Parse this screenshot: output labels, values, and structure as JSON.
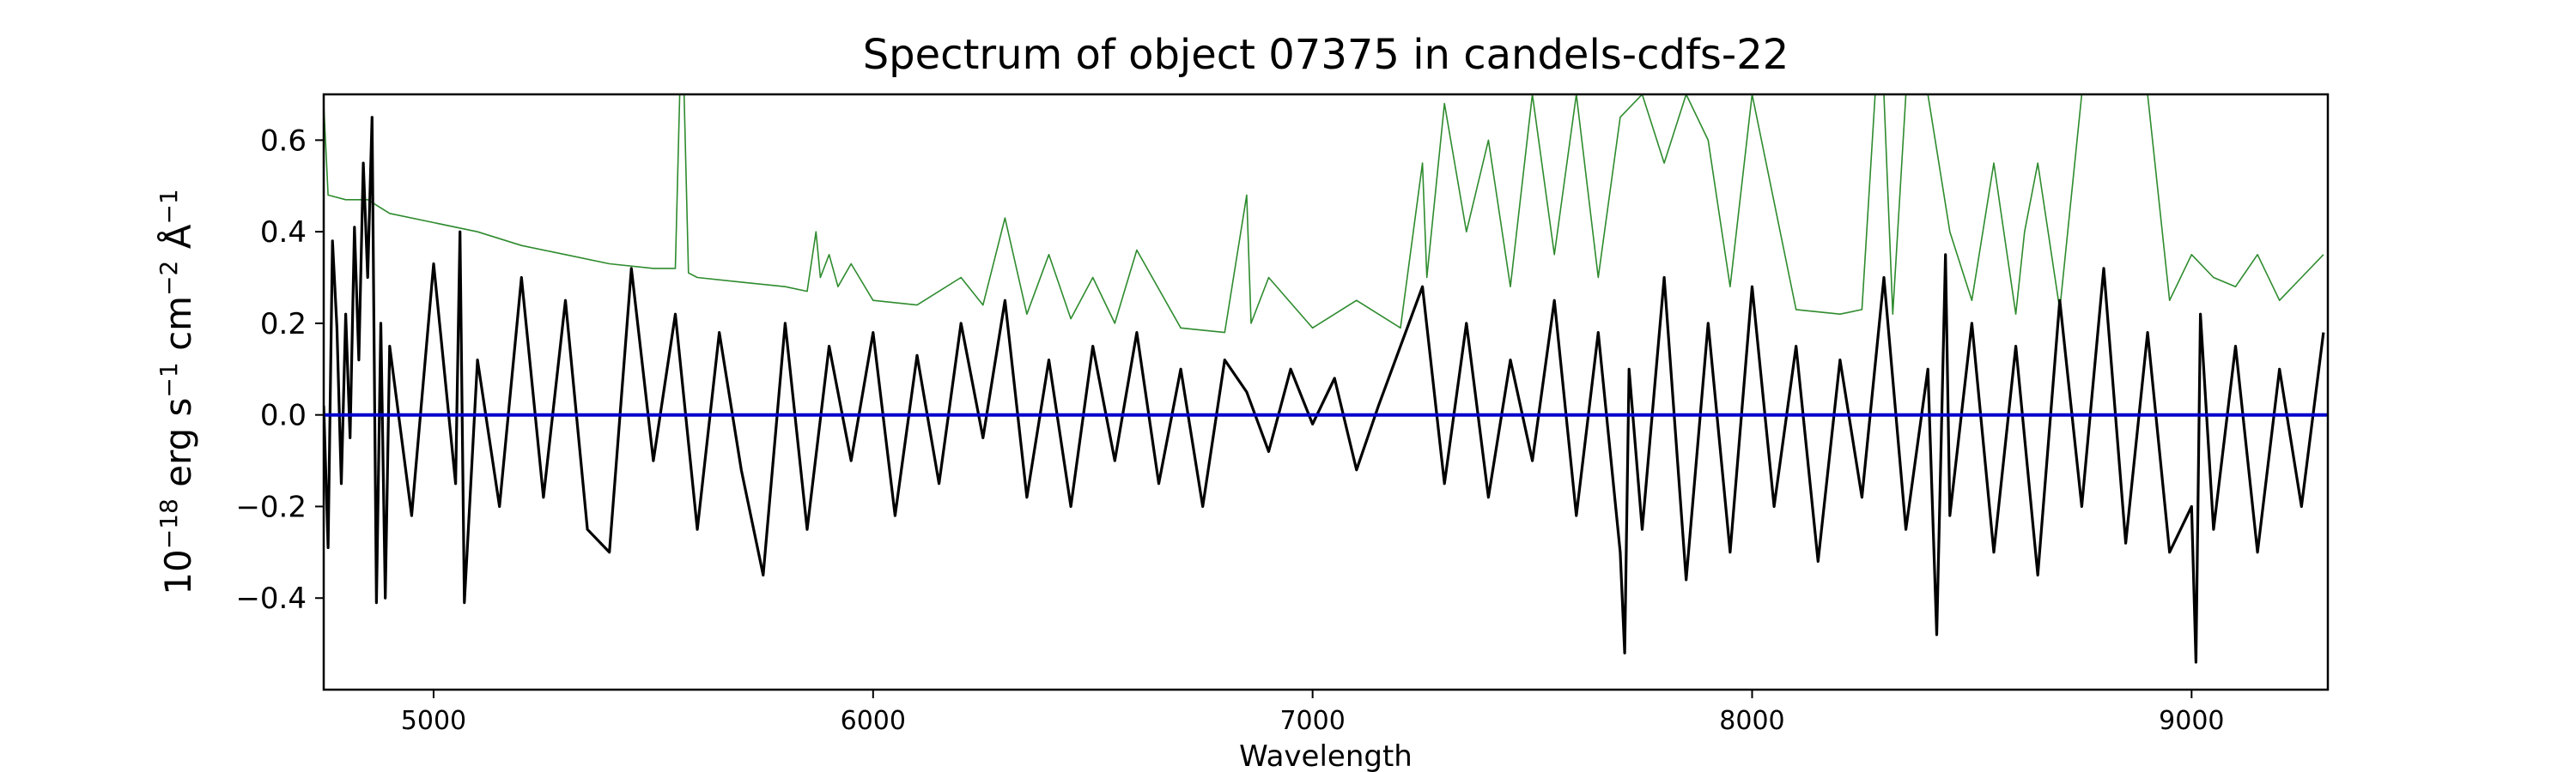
{
  "chart_data": {
    "type": "line",
    "title": "Spectrum of object 07375 in candels-cdfs-22",
    "xlabel": "Wavelength",
    "ylabel": {
      "base": "10",
      "exp1": "−18",
      "unit_erg": " erg s",
      "exp2": "−1",
      "unit_cm": " cm",
      "exp3": "−2",
      "unit_ang": " Å",
      "exp4": "−1"
    },
    "xlim": [
      4750,
      9310
    ],
    "ylim": [
      -0.6,
      0.7
    ],
    "xticks": [
      5000,
      6000,
      7000,
      8000,
      9000
    ],
    "xtick_labels": [
      "5000",
      "6000",
      "7000",
      "8000",
      "9000"
    ],
    "yticks": [
      -0.4,
      -0.2,
      0.0,
      0.2,
      0.4,
      0.6
    ],
    "ytick_labels": [
      "−0.4",
      "−0.2",
      "0.0",
      "0.2",
      "0.4",
      "0.6"
    ],
    "grid": false,
    "legend": "none",
    "colors": {
      "flux": "#000000",
      "error": "#2e8b2e",
      "zero": "#0000cc",
      "frame": "#000000"
    },
    "series": [
      {
        "role": "flux",
        "x": [
          4750,
          4760,
          4770,
          4780,
          4790,
          4800,
          4810,
          4820,
          4830,
          4840,
          4850,
          4860,
          4870,
          4880,
          4890,
          4900,
          4950,
          5000,
          5050,
          5060,
          5070,
          5100,
          5150,
          5200,
          5250,
          5300,
          5350,
          5400,
          5450,
          5500,
          5550,
          5600,
          5650,
          5700,
          5750,
          5800,
          5850,
          5900,
          5950,
          6000,
          6050,
          6100,
          6150,
          6200,
          6250,
          6300,
          6350,
          6400,
          6450,
          6500,
          6550,
          6600,
          6650,
          6700,
          6750,
          6800,
          6850,
          6900,
          6950,
          7000,
          7050,
          7100,
          7150,
          7200,
          7250,
          7300,
          7350,
          7400,
          7450,
          7500,
          7550,
          7600,
          7650,
          7700,
          7710,
          7720,
          7750,
          7800,
          7850,
          7900,
          7950,
          8000,
          8050,
          8100,
          8150,
          8200,
          8250,
          8300,
          8350,
          8400,
          8420,
          8440,
          8450,
          8500,
          8550,
          8600,
          8650,
          8700,
          8750,
          8800,
          8850,
          8900,
          8950,
          9000,
          9010,
          9020,
          9050,
          9100,
          9150,
          9200,
          9250,
          9300
        ],
        "y": [
          0.02,
          -0.29,
          0.38,
          0.19,
          -0.15,
          0.22,
          -0.05,
          0.41,
          0.12,
          0.55,
          0.3,
          0.65,
          -0.41,
          0.2,
          -0.4,
          0.15,
          -0.22,
          0.33,
          -0.15,
          0.4,
          -0.41,
          0.12,
          -0.2,
          0.3,
          -0.18,
          0.25,
          -0.25,
          -0.3,
          0.32,
          -0.1,
          0.22,
          -0.25,
          0.18,
          -0.12,
          -0.35,
          0.2,
          -0.25,
          0.15,
          -0.1,
          0.18,
          -0.22,
          0.13,
          -0.15,
          0.2,
          -0.05,
          0.25,
          -0.18,
          0.12,
          -0.2,
          0.15,
          -0.1,
          0.18,
          -0.15,
          0.1,
          -0.2,
          0.12,
          0.05,
          -0.08,
          0.1,
          -0.02,
          0.08,
          -0.12,
          0.02,
          0.15,
          0.28,
          -0.15,
          0.2,
          -0.18,
          0.12,
          -0.1,
          0.25,
          -0.22,
          0.18,
          -0.3,
          -0.52,
          0.1,
          -0.25,
          0.3,
          -0.36,
          0.2,
          -0.3,
          0.28,
          -0.2,
          0.15,
          -0.32,
          0.12,
          -0.18,
          0.3,
          -0.25,
          0.1,
          -0.48,
          0.35,
          -0.22,
          0.2,
          -0.3,
          0.15,
          -0.35,
          0.25,
          -0.2,
          0.32,
          -0.28,
          0.18,
          -0.3,
          -0.2,
          -0.54,
          0.22,
          -0.25,
          0.15,
          -0.3,
          0.1,
          -0.2,
          0.18
        ]
      },
      {
        "role": "error",
        "x": [
          4750,
          4760,
          4800,
          4850,
          4900,
          5000,
          5100,
          5200,
          5300,
          5400,
          5500,
          5550,
          5560,
          5570,
          5580,
          5600,
          5700,
          5800,
          5850,
          5870,
          5880,
          5900,
          5920,
          5950,
          6000,
          6100,
          6200,
          6250,
          6300,
          6350,
          6400,
          6450,
          6500,
          6550,
          6600,
          6700,
          6800,
          6850,
          6860,
          6900,
          7000,
          7100,
          7200,
          7250,
          7260,
          7300,
          7350,
          7400,
          7450,
          7500,
          7550,
          7600,
          7650,
          7700,
          7750,
          7800,
          7850,
          7900,
          7950,
          8000,
          8100,
          8200,
          8250,
          8280,
          8300,
          8320,
          8350,
          8400,
          8450,
          8500,
          8550,
          8600,
          8620,
          8650,
          8700,
          8750,
          8800,
          8850,
          8900,
          8950,
          9000,
          9050,
          9100,
          9150,
          9200,
          9250,
          9300
        ],
        "y": [
          0.68,
          0.48,
          0.47,
          0.47,
          0.44,
          0.42,
          0.4,
          0.37,
          0.35,
          0.33,
          0.32,
          0.32,
          0.7,
          0.7,
          0.31,
          0.3,
          0.29,
          0.28,
          0.27,
          0.4,
          0.3,
          0.35,
          0.28,
          0.33,
          0.25,
          0.24,
          0.3,
          0.24,
          0.43,
          0.22,
          0.35,
          0.21,
          0.3,
          0.2,
          0.36,
          0.19,
          0.18,
          0.48,
          0.2,
          0.3,
          0.19,
          0.25,
          0.19,
          0.55,
          0.3,
          0.68,
          0.4,
          0.6,
          0.28,
          0.7,
          0.35,
          0.7,
          0.3,
          0.65,
          0.7,
          0.55,
          0.7,
          0.6,
          0.28,
          0.7,
          0.23,
          0.22,
          0.23,
          0.7,
          0.7,
          0.22,
          0.7,
          0.7,
          0.4,
          0.25,
          0.55,
          0.22,
          0.4,
          0.55,
          0.23,
          0.7,
          0.7,
          0.7,
          0.7,
          0.25,
          0.35,
          0.3,
          0.28,
          0.35,
          0.25,
          0.3,
          0.35
        ]
      },
      {
        "role": "zero",
        "x": [
          4750,
          9310
        ],
        "y": [
          0.0,
          0.0
        ]
      }
    ]
  }
}
